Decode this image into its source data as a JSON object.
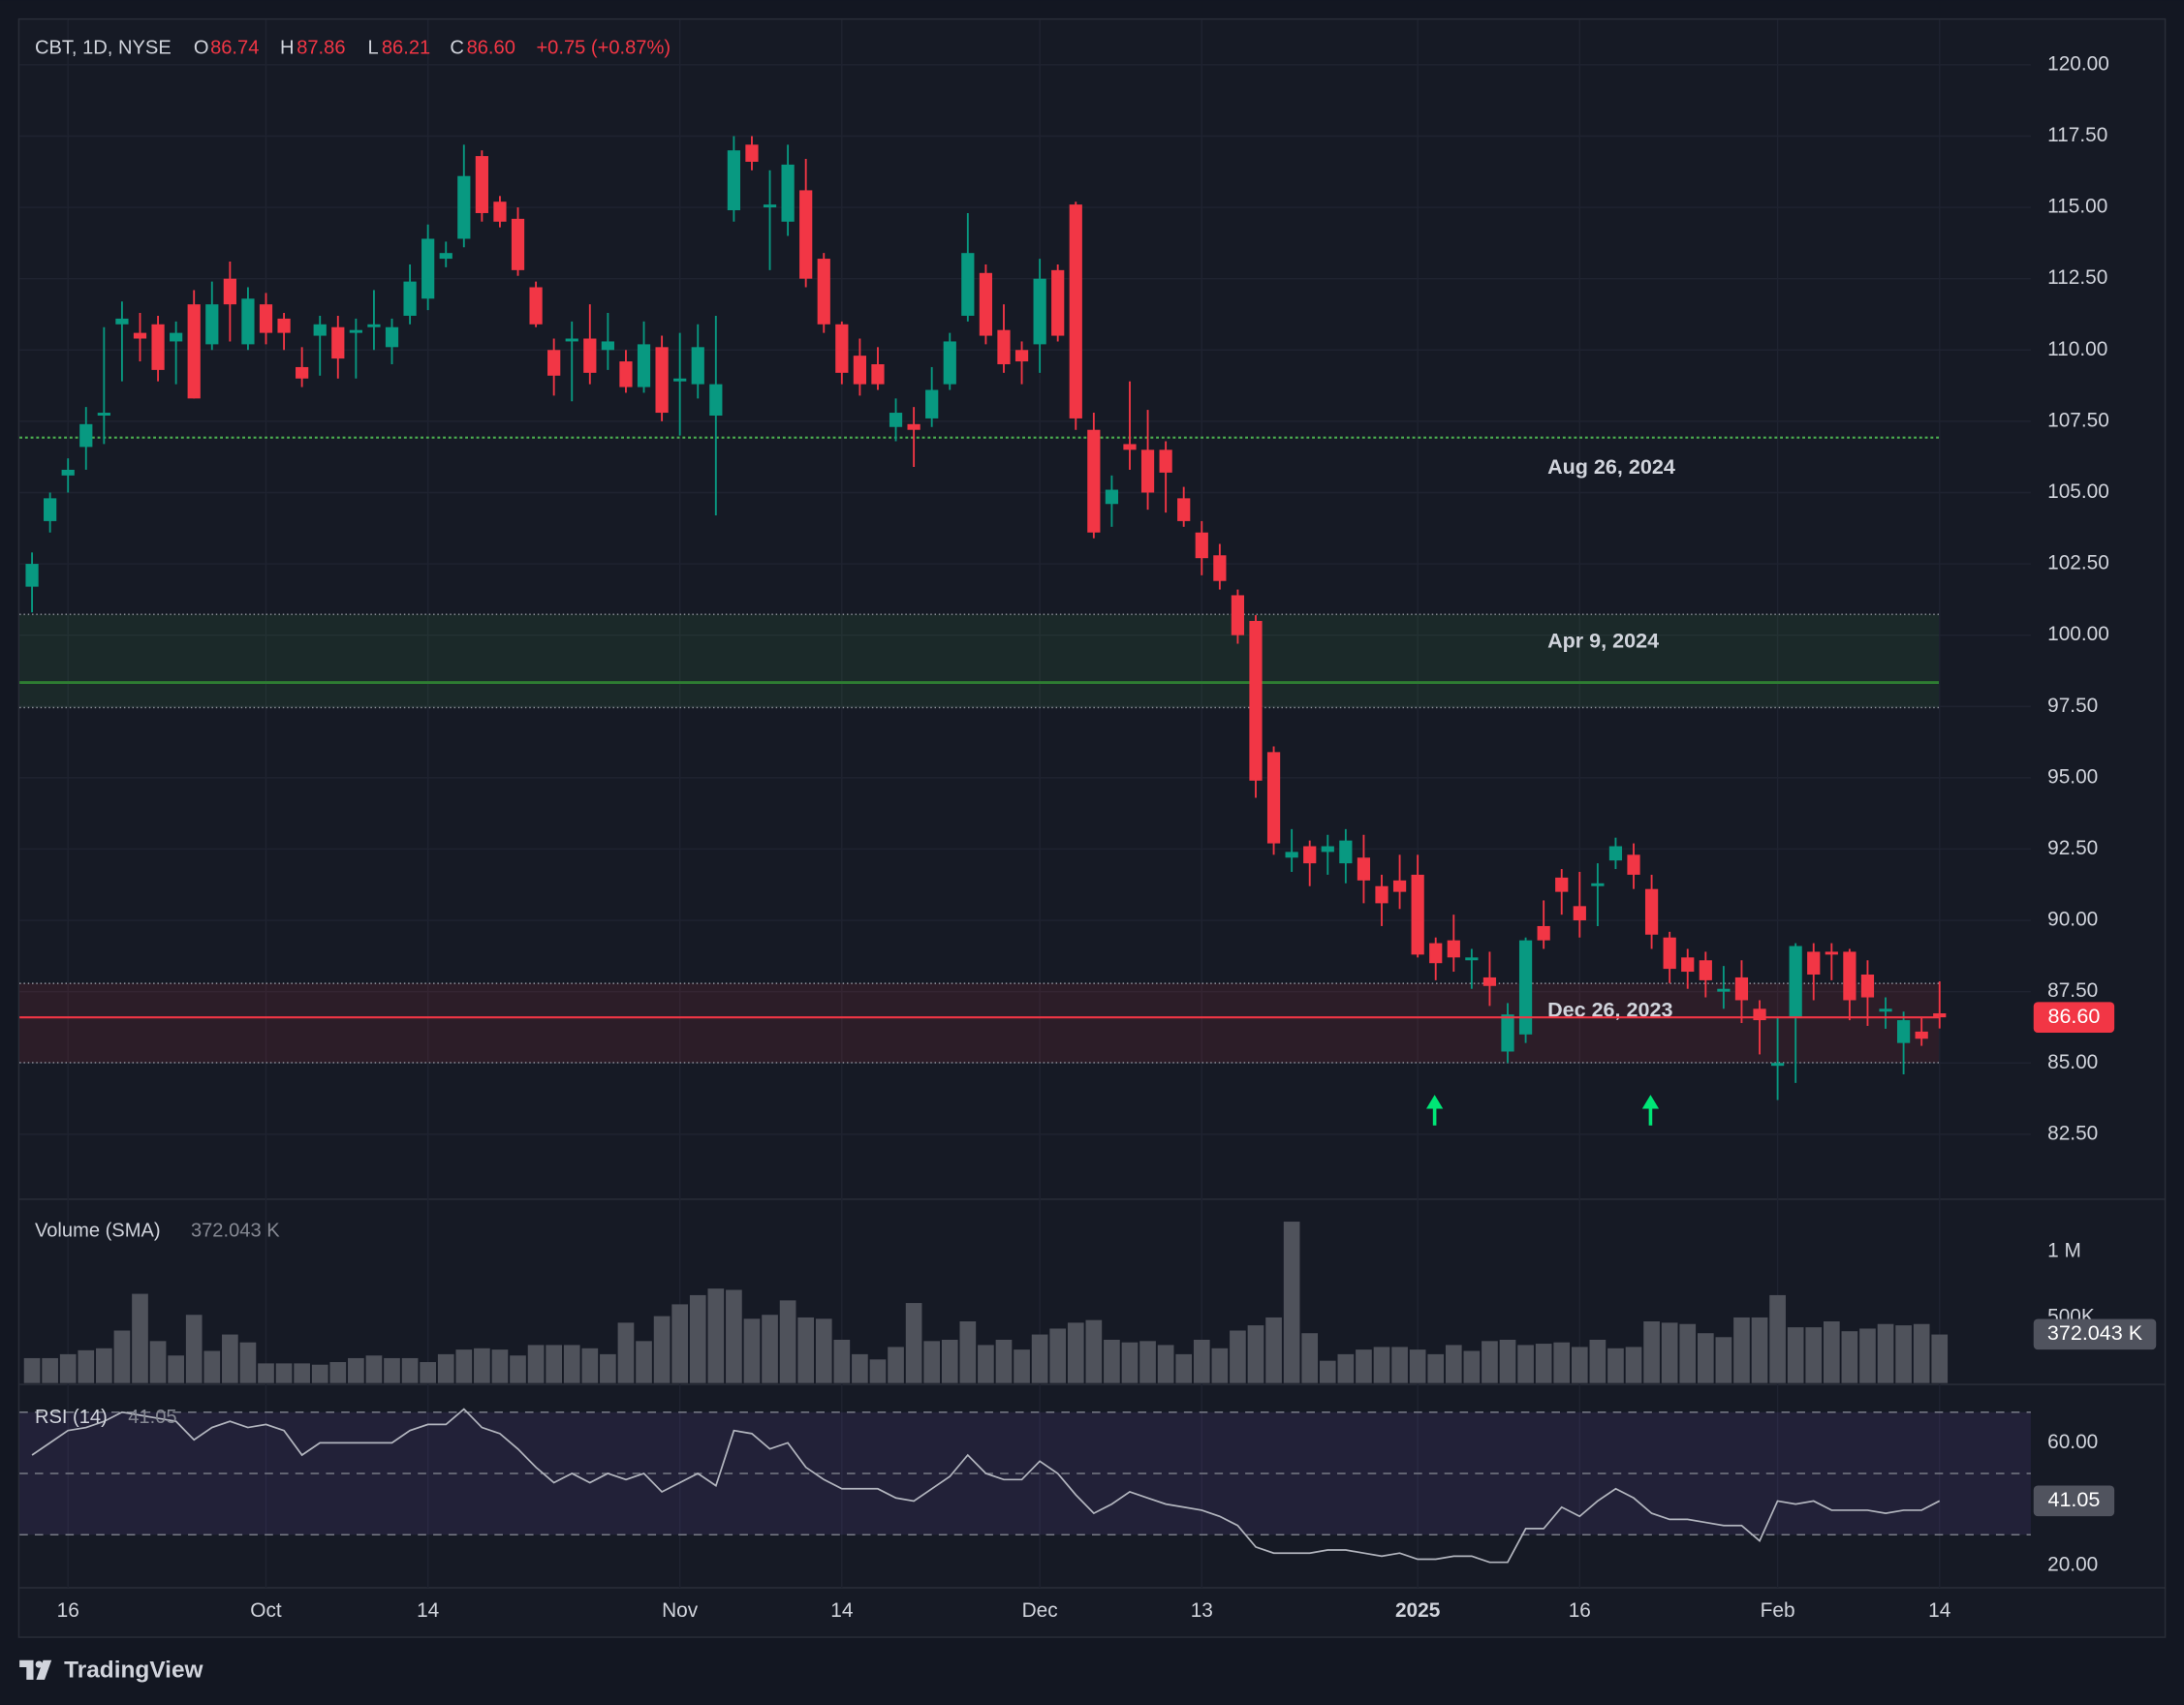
{
  "chart_data": [
    {
      "type": "candlestick",
      "title": "CBT, 1D, NYSE",
      "categories": [
        null,
        null,
        "16",
        null,
        null,
        null,
        null,
        null,
        null,
        null,
        null,
        null,
        null,
        "Oct",
        null,
        null,
        null,
        null,
        null,
        null,
        null,
        null,
        "14",
        null,
        null,
        null,
        null,
        null,
        null,
        null,
        null,
        null,
        null,
        null,
        null,
        null,
        "Nov",
        null,
        null,
        null,
        null,
        null,
        null,
        null,
        null,
        "14",
        null,
        null,
        null,
        null,
        null,
        null,
        null,
        null,
        null,
        null,
        "Dec",
        null,
        null,
        null,
        null,
        null,
        null,
        null,
        null,
        "13",
        null,
        null,
        null,
        null,
        null,
        null,
        null,
        null,
        null,
        null,
        null,
        "2025",
        null,
        null,
        null,
        null,
        null,
        null,
        null,
        null,
        "16",
        null,
        null,
        null,
        null,
        null,
        null,
        null,
        null,
        null,
        null,
        "Feb",
        null,
        null,
        null,
        null,
        null,
        null,
        null,
        null,
        "14"
      ],
      "open": [
        101.7,
        104.0,
        105.6,
        106.6,
        107.7,
        110.9,
        110.6,
        110.9,
        110.3,
        111.6,
        110.2,
        112.5,
        110.2,
        111.6,
        111.1,
        109.4,
        110.5,
        110.8,
        110.6,
        110.8,
        110.1,
        111.2,
        111.8,
        113.2,
        113.9,
        116.8,
        115.2,
        114.6,
        112.2,
        110.0,
        110.3,
        110.4,
        110.0,
        109.6,
        108.7,
        110.1,
        108.9,
        108.8,
        107.7,
        114.9,
        117.2,
        115.0,
        114.5,
        115.6,
        113.2,
        110.9,
        109.8,
        109.5,
        107.3,
        107.4,
        107.6,
        108.8,
        111.2,
        112.7,
        110.7,
        110.0,
        110.2,
        112.8,
        115.1,
        107.2,
        104.6,
        106.7,
        106.5,
        106.5,
        104.8,
        103.6,
        102.8,
        101.4,
        100.5,
        95.9,
        92.2,
        92.6,
        92.4,
        92.0,
        92.2,
        91.2,
        91.4,
        91.6,
        89.2,
        89.3,
        88.6,
        88.0,
        85.4,
        86.0,
        89.8,
        91.5,
        90.5,
        91.2,
        92.1,
        92.3,
        91.1,
        89.4,
        88.7,
        88.6,
        87.5,
        88.0,
        86.9,
        84.9,
        86.6,
        88.9,
        88.9,
        88.9,
        88.1,
        86.8,
        85.7,
        86.1,
        86.74
      ],
      "high": [
        102.9,
        105.0,
        106.2,
        108.0,
        110.8,
        111.7,
        111.3,
        111.2,
        111.0,
        112.1,
        112.4,
        113.1,
        112.2,
        112.0,
        111.3,
        110.1,
        111.2,
        111.2,
        111.1,
        112.1,
        111.1,
        113.0,
        114.4,
        113.8,
        117.2,
        117.0,
        115.4,
        115.0,
        112.4,
        110.4,
        111.0,
        111.6,
        111.3,
        110.0,
        111.0,
        110.5,
        110.6,
        110.9,
        111.2,
        117.5,
        117.5,
        116.3,
        117.2,
        116.7,
        113.4,
        111.0,
        110.4,
        110.1,
        108.3,
        108.0,
        109.4,
        110.6,
        114.8,
        113.0,
        111.6,
        110.3,
        113.2,
        113.0,
        115.2,
        107.8,
        105.6,
        108.9,
        107.9,
        106.8,
        105.2,
        104.0,
        103.2,
        101.6,
        100.7,
        96.1,
        93.2,
        92.8,
        93.0,
        93.2,
        93.0,
        91.6,
        92.3,
        92.3,
        89.4,
        90.2,
        89.0,
        88.9,
        87.1,
        89.4,
        90.7,
        91.8,
        91.7,
        92.0,
        92.9,
        92.7,
        91.6,
        89.6,
        89.0,
        88.9,
        88.4,
        88.6,
        87.2,
        86.6,
        89.2,
        89.2,
        89.2,
        89.0,
        88.6,
        87.3,
        86.8,
        86.6,
        87.86
      ],
      "low": [
        100.8,
        103.6,
        105.0,
        105.8,
        106.7,
        108.9,
        109.6,
        108.9,
        108.8,
        108.3,
        110.0,
        110.3,
        110.0,
        110.2,
        110.0,
        108.7,
        109.1,
        109.0,
        109.0,
        110.0,
        109.5,
        110.9,
        111.4,
        112.9,
        113.6,
        114.5,
        114.3,
        112.6,
        110.8,
        108.4,
        108.2,
        108.8,
        109.3,
        108.5,
        108.5,
        107.5,
        107.0,
        108.3,
        104.2,
        114.5,
        116.3,
        112.8,
        114.0,
        112.2,
        110.6,
        108.8,
        108.4,
        108.6,
        106.8,
        105.9,
        107.3,
        108.6,
        111.0,
        110.2,
        109.2,
        108.8,
        109.2,
        110.3,
        107.2,
        103.4,
        103.8,
        105.8,
        104.4,
        104.3,
        103.8,
        102.1,
        101.6,
        99.7,
        94.3,
        92.3,
        91.7,
        91.2,
        91.6,
        91.3,
        90.6,
        89.8,
        90.4,
        88.7,
        87.9,
        88.2,
        87.6,
        87.0,
        85.0,
        85.7,
        89.0,
        90.2,
        89.4,
        89.8,
        91.8,
        91.1,
        89.0,
        87.8,
        87.6,
        87.3,
        86.9,
        86.4,
        85.3,
        83.7,
        84.3,
        87.2,
        87.9,
        86.5,
        86.3,
        86.2,
        84.6,
        85.6,
        86.21
      ],
      "close": [
        102.5,
        104.8,
        105.8,
        107.4,
        107.8,
        111.1,
        110.4,
        109.3,
        110.6,
        108.3,
        111.6,
        111.6,
        111.8,
        110.6,
        110.6,
        109.0,
        110.9,
        109.7,
        110.7,
        110.9,
        110.8,
        112.4,
        113.9,
        113.4,
        116.1,
        114.8,
        114.5,
        112.8,
        110.9,
        109.1,
        110.4,
        109.2,
        110.3,
        108.7,
        110.2,
        107.8,
        109.0,
        110.1,
        108.8,
        117.0,
        116.6,
        115.1,
        116.5,
        112.5,
        110.9,
        109.2,
        108.8,
        108.8,
        107.8,
        107.2,
        108.6,
        110.3,
        113.4,
        110.5,
        109.5,
        109.6,
        112.5,
        110.5,
        107.6,
        103.6,
        105.1,
        106.5,
        105.0,
        105.7,
        104.0,
        102.7,
        101.9,
        100.0,
        94.9,
        92.7,
        92.4,
        92.0,
        92.6,
        92.8,
        91.4,
        90.6,
        91.0,
        88.8,
        88.5,
        88.7,
        88.7,
        87.7,
        86.7,
        89.3,
        89.3,
        91.0,
        90.0,
        91.3,
        92.6,
        91.6,
        89.5,
        88.3,
        88.2,
        87.9,
        87.6,
        87.2,
        86.5,
        85.0,
        89.1,
        88.1,
        88.8,
        87.2,
        87.3,
        86.9,
        86.5,
        85.85,
        86.6
      ],
      "up_color": "#089981",
      "down_color": "#f23645",
      "ohlc_labels": [
        "O",
        "H",
        "L",
        "C"
      ],
      "change": "+0.75 (+0.87%)",
      "last_price": {
        "value": 86.6,
        "label": "86.60"
      },
      "levels": [
        {
          "label": "Aug 26, 2024",
          "value": 106.93,
          "color": "#4caf50"
        }
      ],
      "zones": [
        {
          "label": "Apr 9, 2024",
          "top": 100.73,
          "bottom": 97.46,
          "line": 98.34,
          "color": "#4caf50"
        },
        {
          "label": "Dec 26, 2023",
          "top": 87.79,
          "bottom": 85.01,
          "color": "#f23645"
        }
      ],
      "ylim": [
        80.27,
        121.58
      ],
      "yticks": [
        {
          "value": 82.5,
          "label": "82.50"
        },
        {
          "value": 85,
          "label": "85.00"
        },
        {
          "value": 87.5,
          "label": "87.50"
        },
        {
          "value": 90,
          "label": "90.00"
        },
        {
          "value": 92.5,
          "label": "92.50"
        },
        {
          "value": 95,
          "label": "95.00"
        },
        {
          "value": 97.5,
          "label": "97.50"
        },
        {
          "value": 100,
          "label": "100.00"
        },
        {
          "value": 102.5,
          "label": "102.50"
        },
        {
          "value": 105,
          "label": "105.00"
        },
        {
          "value": 107.5,
          "label": "107.50"
        },
        {
          "value": 110,
          "label": "110.00"
        },
        {
          "value": 112.5,
          "label": "112.50"
        },
        {
          "value": 115,
          "label": "115.00"
        },
        {
          "value": 117.5,
          "label": "117.50"
        },
        {
          "value": 120,
          "label": "120.00"
        }
      ],
      "grid": true
    },
    {
      "type": "bar",
      "title": "Volume (SMA)",
      "sma": {
        "value": 372043,
        "label": "372.043 K"
      },
      "values": [
        190000,
        190000,
        220000,
        250000,
        265000,
        400000,
        680000,
        320000,
        210000,
        520000,
        245000,
        370000,
        310000,
        150000,
        150000,
        150000,
        140000,
        160000,
        190000,
        210000,
        190000,
        190000,
        160000,
        220000,
        255000,
        265000,
        255000,
        210000,
        290000,
        290000,
        290000,
        265000,
        220000,
        460000,
        320000,
        510000,
        600000,
        670000,
        720000,
        710000,
        490000,
        520000,
        630000,
        500000,
        490000,
        330000,
        220000,
        180000,
        275000,
        610000,
        320000,
        330000,
        470000,
        290000,
        330000,
        255000,
        370000,
        415000,
        460000,
        480000,
        330000,
        310000,
        320000,
        290000,
        220000,
        330000,
        265000,
        400000,
        440000,
        500000,
        1230000,
        380000,
        170000,
        220000,
        255000,
        275000,
        275000,
        255000,
        220000,
        290000,
        245000,
        320000,
        330000,
        290000,
        300000,
        310000,
        275000,
        330000,
        265000,
        275000,
        470000,
        460000,
        450000,
        380000,
        350000,
        500000,
        500000,
        670000,
        425000,
        425000,
        470000,
        395000,
        415000,
        450000,
        440000,
        450000,
        370000
      ],
      "color": "#4f525b",
      "ylim": [
        0,
        1390000
      ],
      "yticks": [
        {
          "value": 500000,
          "label": "500K"
        },
        {
          "value": 1000000,
          "label": "1 M"
        }
      ]
    },
    {
      "type": "line",
      "title": "RSI (14)",
      "values": [
        56,
        60,
        64,
        65,
        67,
        70,
        69,
        68,
        67,
        61,
        65,
        67,
        65,
        66,
        64,
        56,
        60,
        60,
        60,
        60,
        60,
        64,
        66,
        66,
        71,
        65,
        63,
        58,
        52,
        47,
        50,
        47,
        50,
        48,
        50,
        44,
        47,
        50,
        46,
        64,
        63,
        58,
        60,
        52,
        48,
        45,
        45,
        45,
        42,
        41,
        45,
        49,
        56,
        50,
        48,
        48,
        54,
        50,
        43,
        37,
        40,
        44,
        42,
        40,
        39,
        38,
        36,
        33,
        26,
        24,
        24,
        24,
        25,
        25,
        24,
        23,
        24,
        22,
        22,
        23,
        23,
        21,
        21,
        32,
        32,
        39,
        36,
        41,
        45,
        42,
        37,
        35,
        35,
        34,
        33,
        33,
        28,
        41,
        40,
        41,
        38,
        38,
        38,
        37,
        38,
        38,
        41.05
      ],
      "color": "#b2b5be",
      "bands": [
        70,
        50,
        30
      ],
      "ylim": [
        12.7,
        78.6
      ],
      "yticks": [
        {
          "value": 20,
          "label": "20.00"
        },
        {
          "value": 60,
          "label": "60.00"
        }
      ]
    }
  ],
  "branding": "TradingView"
}
